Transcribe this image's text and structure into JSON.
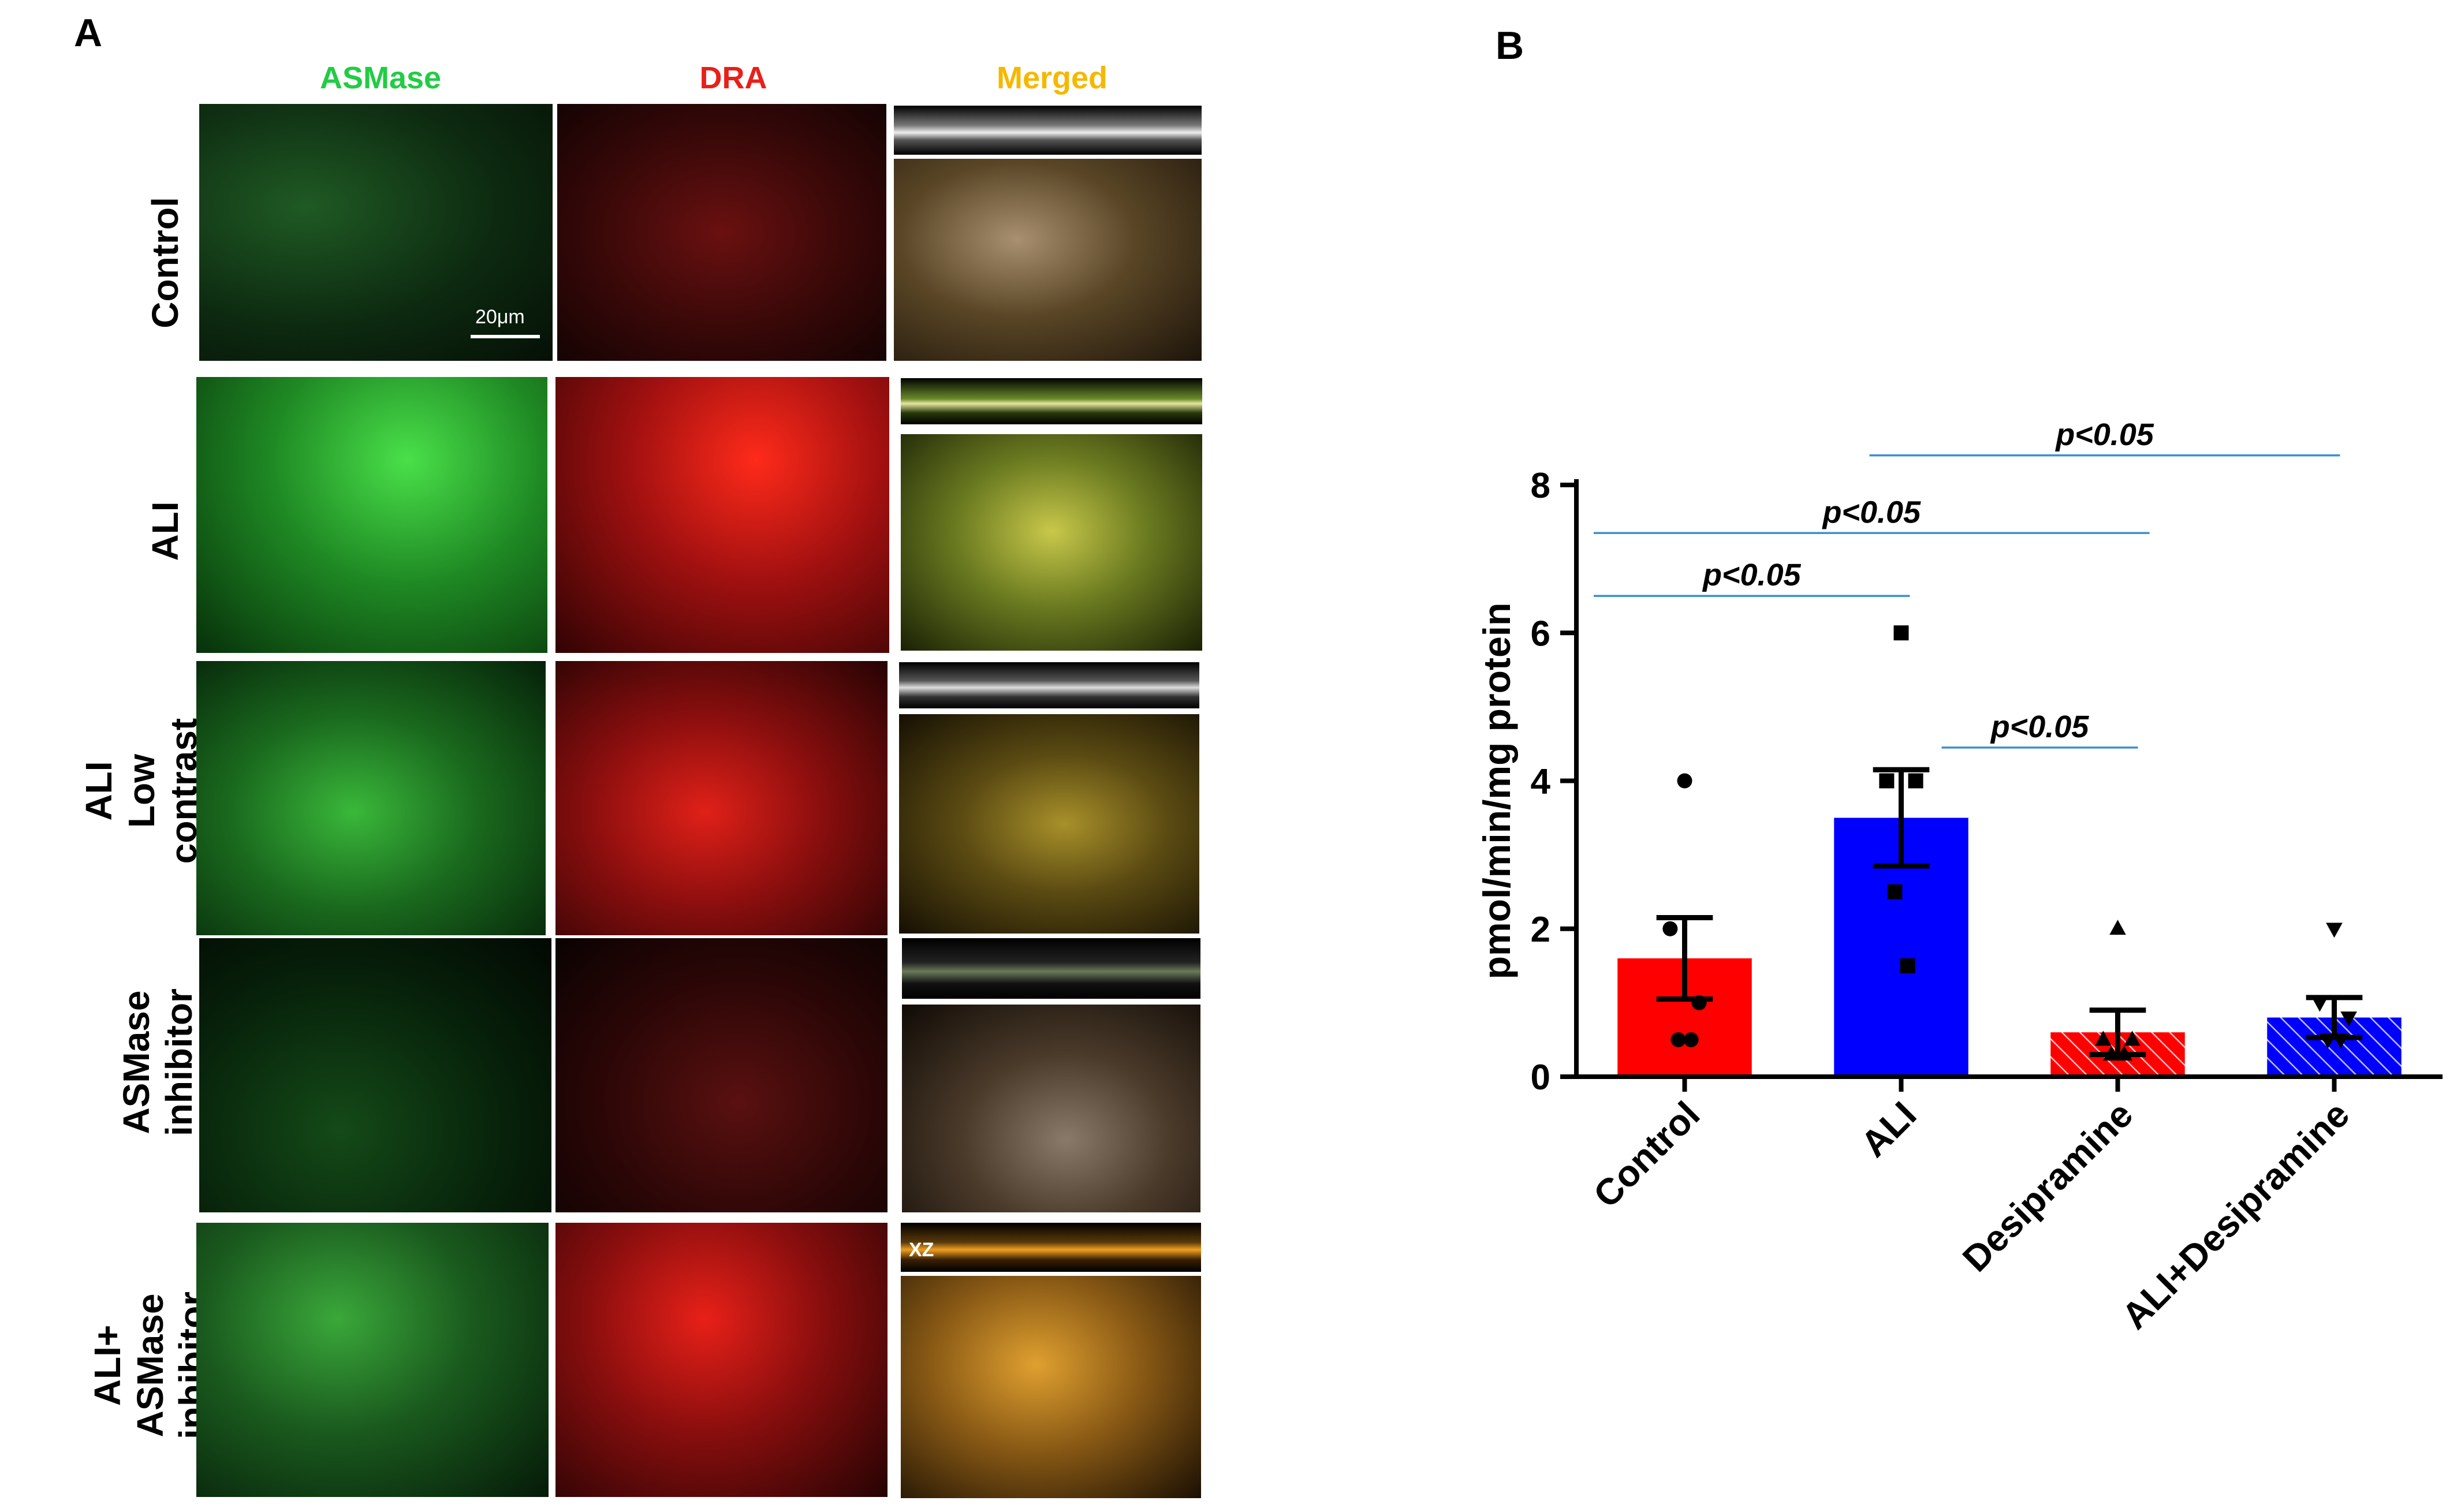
{
  "panel_a": {
    "letter": "A",
    "columns": [
      "ASMase",
      "DRA",
      "Merged"
    ],
    "column_colors": [
      "#22cc44",
      "#e8201a",
      "#f5b800"
    ],
    "rows": [
      {
        "label_lines": [
          "Control"
        ]
      },
      {
        "label_lines": [
          "ALI"
        ]
      },
      {
        "label_lines": [
          "ALI",
          "Low",
          "contrast"
        ]
      },
      {
        "label_lines": [
          "ASMase",
          "inhibitor"
        ]
      },
      {
        "label_lines": [
          "ALI+",
          "ASMase",
          "inhibitor"
        ]
      }
    ],
    "scale_bar": "20μm",
    "xz_label": "XZ"
  },
  "panel_b": {
    "letter": "B"
  },
  "chart_data": {
    "type": "bar",
    "categories": [
      "Control",
      "ALI",
      "Desipramine",
      "ALI+Desipramine"
    ],
    "values": [
      1.6,
      3.5,
      0.6,
      0.8
    ],
    "sem": [
      0.55,
      0.65,
      0.3,
      0.27
    ],
    "bar_colors": [
      "#ff0000",
      "#0000ff",
      "#ff0000",
      "#0000ff"
    ],
    "hatched": [
      false,
      false,
      true,
      true
    ],
    "points": [
      [
        4,
        2,
        1,
        0.5,
        0.5
      ],
      [
        6,
        4,
        4,
        2.5,
        1.5
      ],
      [
        2,
        0.5,
        0.5,
        0.3,
        0.3
      ],
      [
        2,
        1,
        0.8,
        0.5,
        0.5
      ]
    ],
    "point_markers": [
      "circle",
      "square",
      "triangle",
      "triangle-down"
    ],
    "ylabel": "pmol/min/mg protein",
    "xlabel": "",
    "ylim": [
      0,
      8
    ],
    "yticks": [
      0,
      2,
      4,
      6,
      8
    ],
    "significance": [
      {
        "from": 0,
        "to": 1,
        "y": 6.5,
        "label": "p<0.05"
      },
      {
        "from": 0,
        "to": 2,
        "y": 7.35,
        "label": "p<0.05"
      },
      {
        "from": 1,
        "to": 3,
        "y": 8.4,
        "label": "p<0.05"
      },
      {
        "from": 1.5,
        "to": 2,
        "y": 4.45,
        "label": "p<0.05"
      }
    ],
    "significance_color": "#3a8fd0"
  }
}
